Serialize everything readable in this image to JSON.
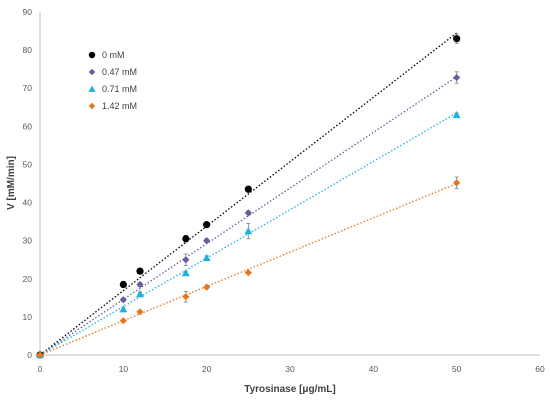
{
  "chart_data": {
    "type": "scatter",
    "title": "",
    "xlabel": "Tyrosinase [μg/mL]",
    "ylabel": "V [mM/min]",
    "xlim": [
      0,
      60
    ],
    "ylim": [
      0,
      90
    ],
    "xticks": [
      0,
      10,
      20,
      30,
      40,
      50,
      60
    ],
    "yticks": [
      0,
      10,
      20,
      30,
      40,
      50,
      60,
      70,
      80,
      90
    ],
    "grid": false,
    "legend_position": "top-left",
    "trendlines": "dotted linear fit through origin for each series",
    "series": [
      {
        "name": "0 mM",
        "color": "#000000",
        "marker": "circle",
        "x": [
          0,
          10,
          12,
          17.5,
          20,
          25,
          50
        ],
        "y": [
          0,
          18.5,
          22,
          30.5,
          34.2,
          43.5,
          83
        ],
        "error": [
          0,
          0.8,
          0.6,
          0.9,
          0.6,
          0.8,
          1.2
        ],
        "trend_end": [
          50,
          84.5
        ]
      },
      {
        "name": "0.47 mM",
        "color": "#6a5c9e",
        "marker": "diamond",
        "x": [
          0,
          10,
          12,
          17.5,
          20,
          25,
          50
        ],
        "y": [
          0,
          14.5,
          18.5,
          25,
          30,
          37.3,
          72.8
        ],
        "error": [
          0,
          0.5,
          0.5,
          1.5,
          0.5,
          0.5,
          1.5
        ],
        "trend_end": [
          50,
          73
        ]
      },
      {
        "name": "0.71 mM",
        "color": "#1fb0e0",
        "marker": "triangle",
        "x": [
          0,
          10,
          12,
          17.5,
          20,
          25,
          50
        ],
        "y": [
          0,
          12,
          16,
          21.5,
          25.5,
          32.5,
          63
        ],
        "error": [
          0,
          0.5,
          0.5,
          0.5,
          0.5,
          2,
          0.5
        ],
        "trend_end": [
          50,
          63.5
        ]
      },
      {
        "name": "1.42 mM",
        "color": "#e4761f",
        "marker": "diamond",
        "x": [
          0,
          10,
          12,
          17.5,
          20,
          25,
          50
        ],
        "y": [
          0,
          9,
          11.3,
          15.3,
          17.8,
          21.6,
          45.2
        ],
        "error": [
          0,
          0.3,
          0.3,
          1.4,
          0.3,
          0.3,
          1.5
        ],
        "trend_end": [
          50,
          45
        ]
      }
    ]
  }
}
